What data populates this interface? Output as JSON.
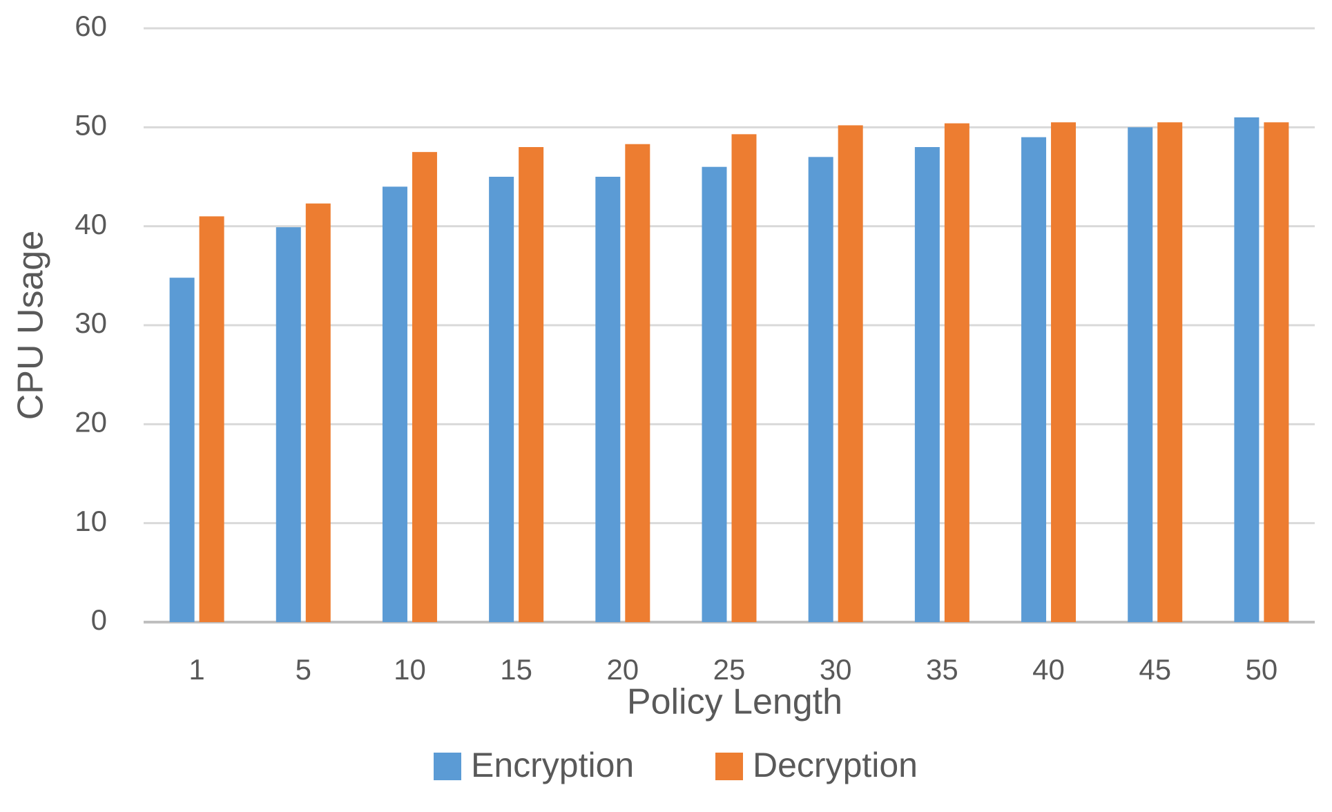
{
  "chart_data": {
    "type": "bar",
    "x_label": "Policy Length",
    "y_label": "CPU Usage",
    "categories": [
      "1",
      "5",
      "10",
      "15",
      "20",
      "25",
      "30",
      "35",
      "40",
      "45",
      "50"
    ],
    "series": [
      {
        "name": "Encryption",
        "color": "#5b9bd5",
        "values": [
          34.8,
          39.9,
          44,
          45,
          45,
          46,
          47,
          48,
          49,
          50,
          51
        ]
      },
      {
        "name": "Decryption",
        "color": "#ed7d31",
        "values": [
          41,
          42.3,
          47.5,
          48,
          48.3,
          49.3,
          50.2,
          50.4,
          50.5,
          50.5,
          50.5
        ]
      }
    ],
    "ylim": [
      0,
      60
    ],
    "yticks": [
      0,
      10,
      20,
      30,
      40,
      50,
      60
    ],
    "grid": true,
    "legend": "bottom"
  }
}
